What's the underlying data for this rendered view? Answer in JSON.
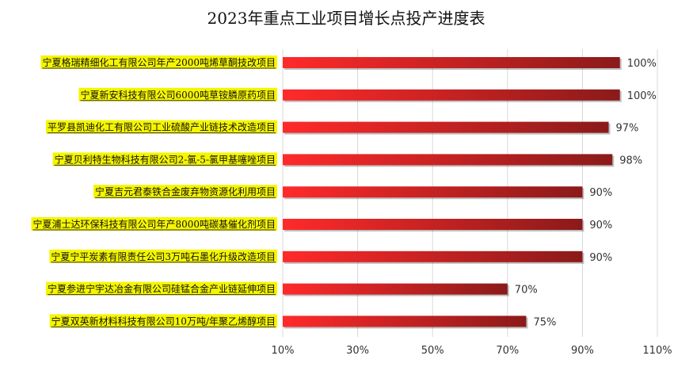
{
  "chart_data": {
    "type": "bar",
    "orientation": "horizontal",
    "title": "2023年重点工业项目增长点投产进度表",
    "xlabel": "",
    "ylabel": "",
    "xlim": [
      10,
      110
    ],
    "x_ticks": [
      "10%",
      "30%",
      "50%",
      "70%",
      "90%",
      "110%"
    ],
    "x_tick_values": [
      10,
      30,
      50,
      70,
      90,
      110
    ],
    "grid": true,
    "categories": [
      "宁夏格瑞精细化工有限公司年产2000吨烯草酮技改项目",
      "宁夏新安科技有限公司6000吨草铵膦原药项目",
      "平罗县凯迪化工有限公司工业硫酸产业链技术改造项目",
      "宁夏贝利特生物科技有限公司2-氯-5-氯甲基噻唑项目",
      "宁夏吉元君泰铁合金废弃物资源化利用项目",
      "宁夏浦士达环保科技有限公司年产8000吨碳基催化剂项目",
      "宁夏宁平炭素有限责任公司3万吨石墨化升级改造项目",
      "宁夏参进宁宇达冶金有限公司硅锰合金产业链延伸项目",
      "宁夏双英新材料科技有限公司10万吨/年聚乙烯醇项目"
    ],
    "values": [
      100,
      100,
      97,
      98,
      90,
      90,
      90,
      70,
      75
    ],
    "value_labels": [
      "100%",
      "100%",
      "97%",
      "98%",
      "90%",
      "90%",
      "90%",
      "70%",
      "75%"
    ],
    "colors": {
      "bar_start": "#ff2a2a",
      "bar_end": "#8b1a1a",
      "label_highlight": "#f5f500",
      "grid": "#d9d9d9"
    }
  }
}
